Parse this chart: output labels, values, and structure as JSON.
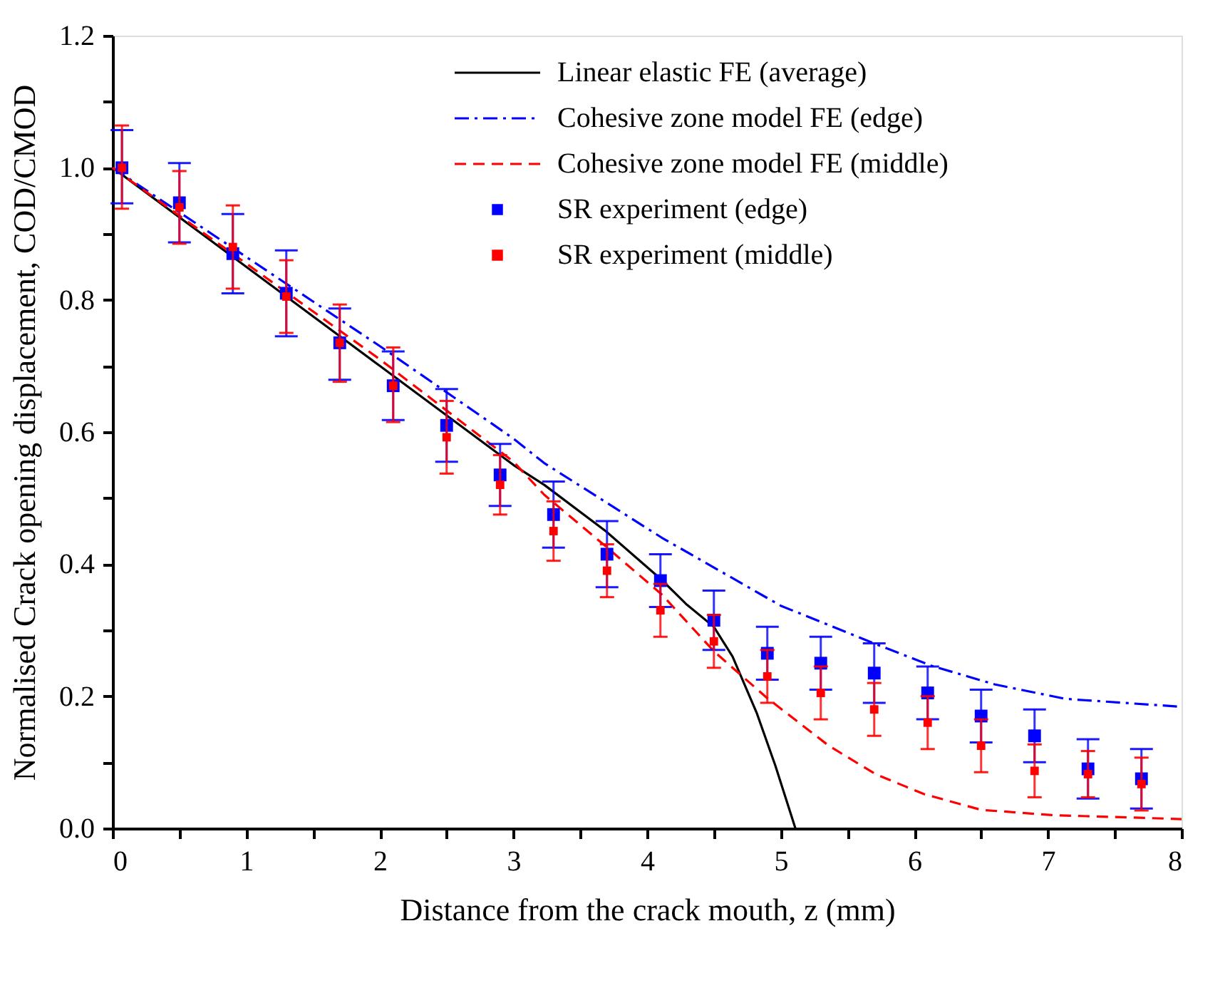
{
  "chart_data": {
    "type": "line",
    "xlabel": "Distance from the crack mouth, z (mm)",
    "ylabel": "Normalised Crack opening displacement, COD/CMOD",
    "xlim": [
      0,
      8
    ],
    "ylim": [
      0,
      1.2
    ],
    "xticks": [
      0,
      {
        "value": 0.5,
        "label": null
      },
      1,
      {
        "value": 1.5,
        "label": null
      },
      2,
      {
        "value": 2.5,
        "label": null
      },
      3,
      {
        "value": 3.5,
        "label": null
      },
      4,
      {
        "value": 4.5,
        "label": null
      },
      5,
      {
        "value": 5.5,
        "label": null
      },
      6,
      {
        "value": 6.5,
        "label": null
      },
      7,
      {
        "value": 7.5,
        "label": null
      },
      8
    ],
    "yticks": [
      {
        "value": 0,
        "label": "0.0"
      },
      {
        "value": 0.1,
        "label": null
      },
      0.2,
      {
        "value": 0.3,
        "label": null
      },
      0.4,
      {
        "value": 0.5,
        "label": null
      },
      0.6,
      {
        "value": 0.7,
        "label": null
      },
      0.8,
      {
        "value": 0.9,
        "label": null
      },
      {
        "value": 1.0,
        "label": "1.0"
      },
      {
        "value": 1.1,
        "label": null
      },
      1.2
    ],
    "grid": false,
    "legend": "top right",
    "series": [
      {
        "name": "Linear elastic FE (average)",
        "type": "line",
        "line_style": "solid",
        "color": "#000000",
        "x": [
          0,
          1,
          2,
          3,
          3.23,
          3.69,
          4.11,
          4.29,
          4.5,
          4.64,
          4.82,
          4.96,
          5.11
        ],
        "values": [
          1.0,
          0.85,
          0.7,
          0.55,
          0.52,
          0.45,
          0.376,
          0.34,
          0.305,
          0.26,
          0.175,
          0.095,
          0
        ]
      },
      {
        "name": "Cohesive zone model FE (edge)",
        "type": "line",
        "line_style": "dashdot",
        "color": "#0000ff",
        "x": [
          0,
          1,
          2,
          3,
          3.23,
          4.11,
          5.0,
          5.71,
          6.13,
          6.6,
          7.13,
          8.0
        ],
        "values": [
          1.0,
          0.865,
          0.73,
          0.59,
          0.553,
          0.44,
          0.337,
          0.279,
          0.246,
          0.218,
          0.196,
          0.184
        ]
      },
      {
        "name": "Cohesive zone model FE (middle)",
        "type": "line",
        "line_style": "dashed",
        "color": "#ff0000",
        "x": [
          0,
          1,
          2,
          3,
          3.23,
          3.69,
          4.11,
          4.5,
          4.9,
          5.36,
          5.71,
          6.07,
          6.5,
          7.03,
          8.0
        ],
        "values": [
          1.0,
          0.855,
          0.71,
          0.555,
          0.505,
          0.427,
          0.354,
          0.268,
          0.197,
          0.125,
          0.082,
          0.052,
          0.028,
          0.02,
          0.014
        ]
      },
      {
        "name": "SR experiment (edge)",
        "type": "scatter",
        "marker": "square",
        "color": "#0000ff",
        "x": [
          0.07,
          0.5,
          0.9,
          1.3,
          1.7,
          2.1,
          2.5,
          2.9,
          3.3,
          3.7,
          4.1,
          4.5,
          4.9,
          5.3,
          5.7,
          6.1,
          6.5,
          6.9,
          7.3,
          7.7
        ],
        "values": [
          1.0,
          0.947,
          0.87,
          0.81,
          0.735,
          0.67,
          0.61,
          0.535,
          0.475,
          0.415,
          0.375,
          0.315,
          0.265,
          0.25,
          0.235,
          0.205,
          0.17,
          0.14,
          0.09,
          0.075
        ],
        "errors": [
          [
            0.946,
            1.057
          ],
          0.06,
          0.06,
          0.065,
          [
            0.679,
            0.787
          ],
          [
            0.618,
            0.722
          ],
          0.055,
          0.047,
          0.05,
          0.05,
          0.04,
          0.045,
          0.04,
          0.04,
          0.045,
          0.04,
          0.04,
          0.04,
          0.045,
          0.045
        ]
      },
      {
        "name": "SR experiment (middle)",
        "type": "scatter",
        "marker": "square",
        "color": "#ff0000",
        "x": [
          0.07,
          0.5,
          0.9,
          1.3,
          1.7,
          2.1,
          2.5,
          2.9,
          3.3,
          3.7,
          4.1,
          4.5,
          4.9,
          5.3,
          5.7,
          6.1,
          6.5,
          6.9,
          7.3,
          7.7
        ],
        "values": [
          1.0,
          0.94,
          0.88,
          0.805,
          0.735,
          0.67,
          0.592,
          0.52,
          0.45,
          0.39,
          0.33,
          0.283,
          0.23,
          0.205,
          0.18,
          0.16,
          0.125,
          0.087,
          0.082,
          0.067
        ],
        "errors": [
          [
            0.938,
            1.064
          ],
          0.055,
          0.063,
          0.055,
          [
            0.676,
            0.793
          ],
          [
            0.615,
            0.728
          ],
          0.055,
          0.045,
          0.045,
          0.04,
          0.04,
          0.04,
          0.04,
          0.04,
          0.04,
          0.04,
          0.04,
          0.04,
          0.035,
          0.04
        ]
      }
    ]
  }
}
